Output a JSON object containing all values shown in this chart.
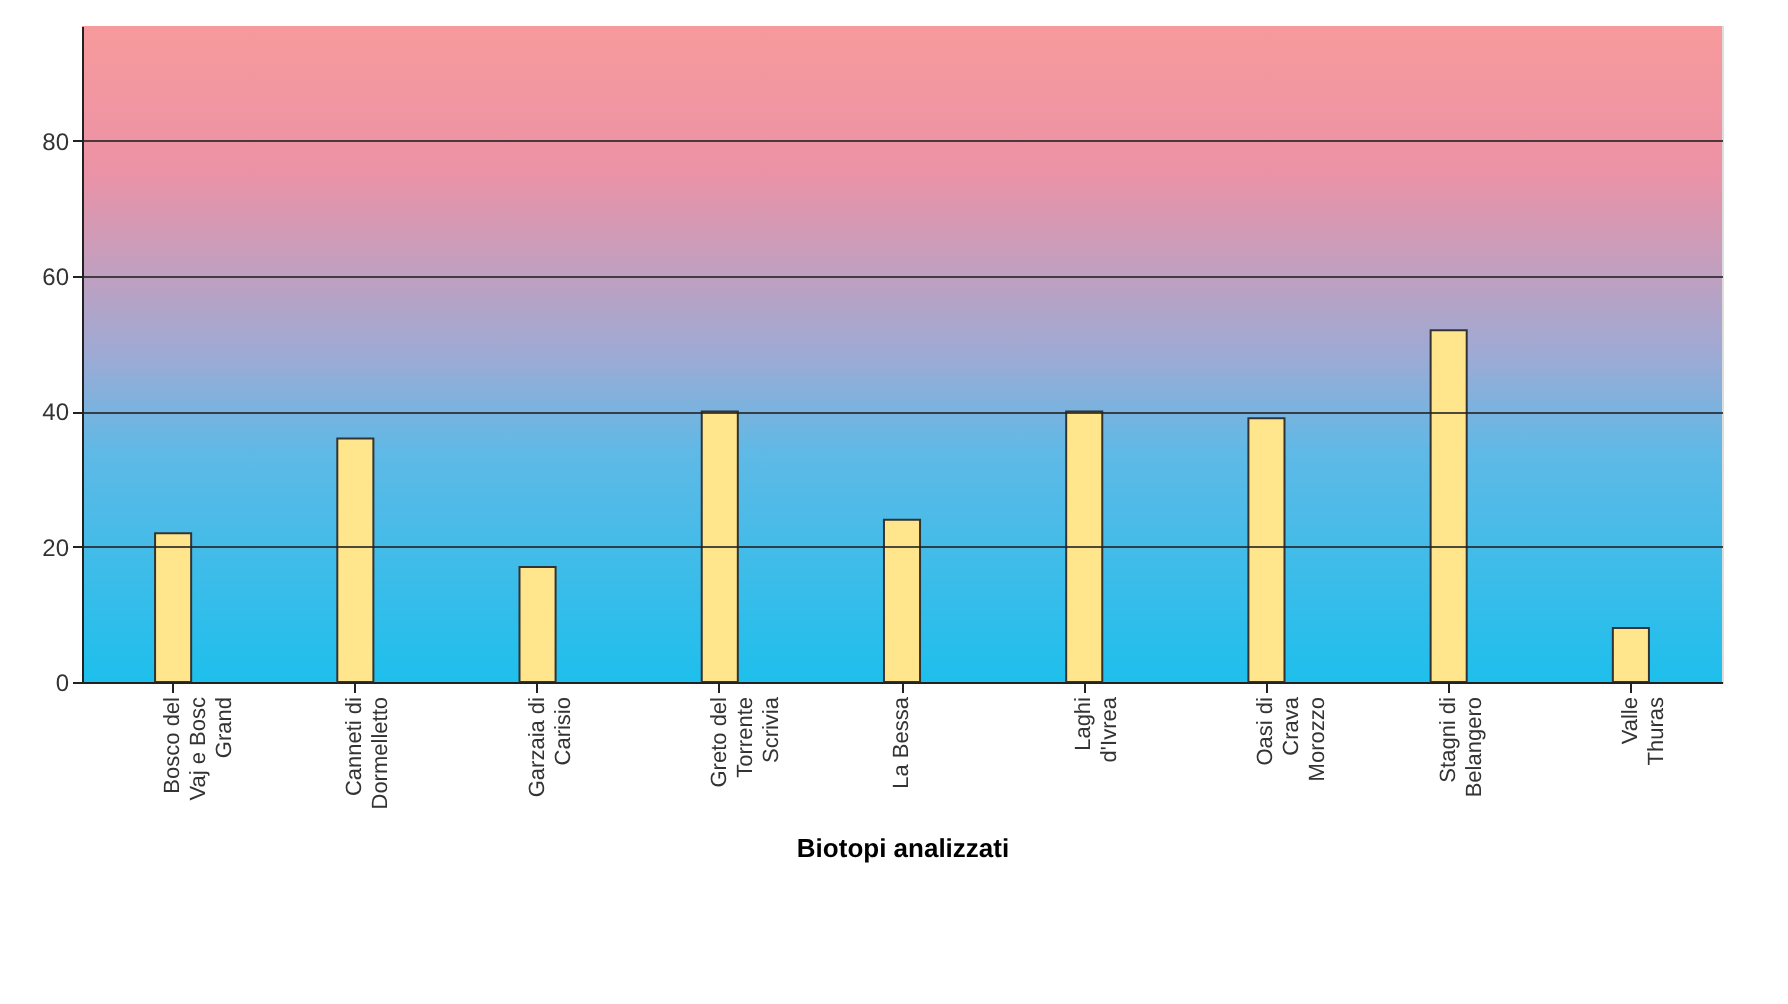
{
  "chart_data": {
    "type": "bar",
    "xlabel": "Biotopi analizzati",
    "categories": [
      "Bosco del Vaj e Bosc Grand",
      "Canneti di Dormelletto",
      "Garzaia di Carisio",
      "Greto del Torrente Scrivia",
      "La Bessa",
      "Laghi d'Ivrea",
      "Oasi di Crava Morozzo",
      "Stagni di Belangero",
      "Valle Thuras"
    ],
    "values": [
      22,
      36,
      17,
      40,
      24,
      40,
      39,
      52,
      8
    ],
    "color": "#ffe68c",
    "ylim": [
      0,
      97
    ],
    "yticks": [
      0,
      20,
      40,
      60,
      80
    ],
    "grid": "y"
  }
}
